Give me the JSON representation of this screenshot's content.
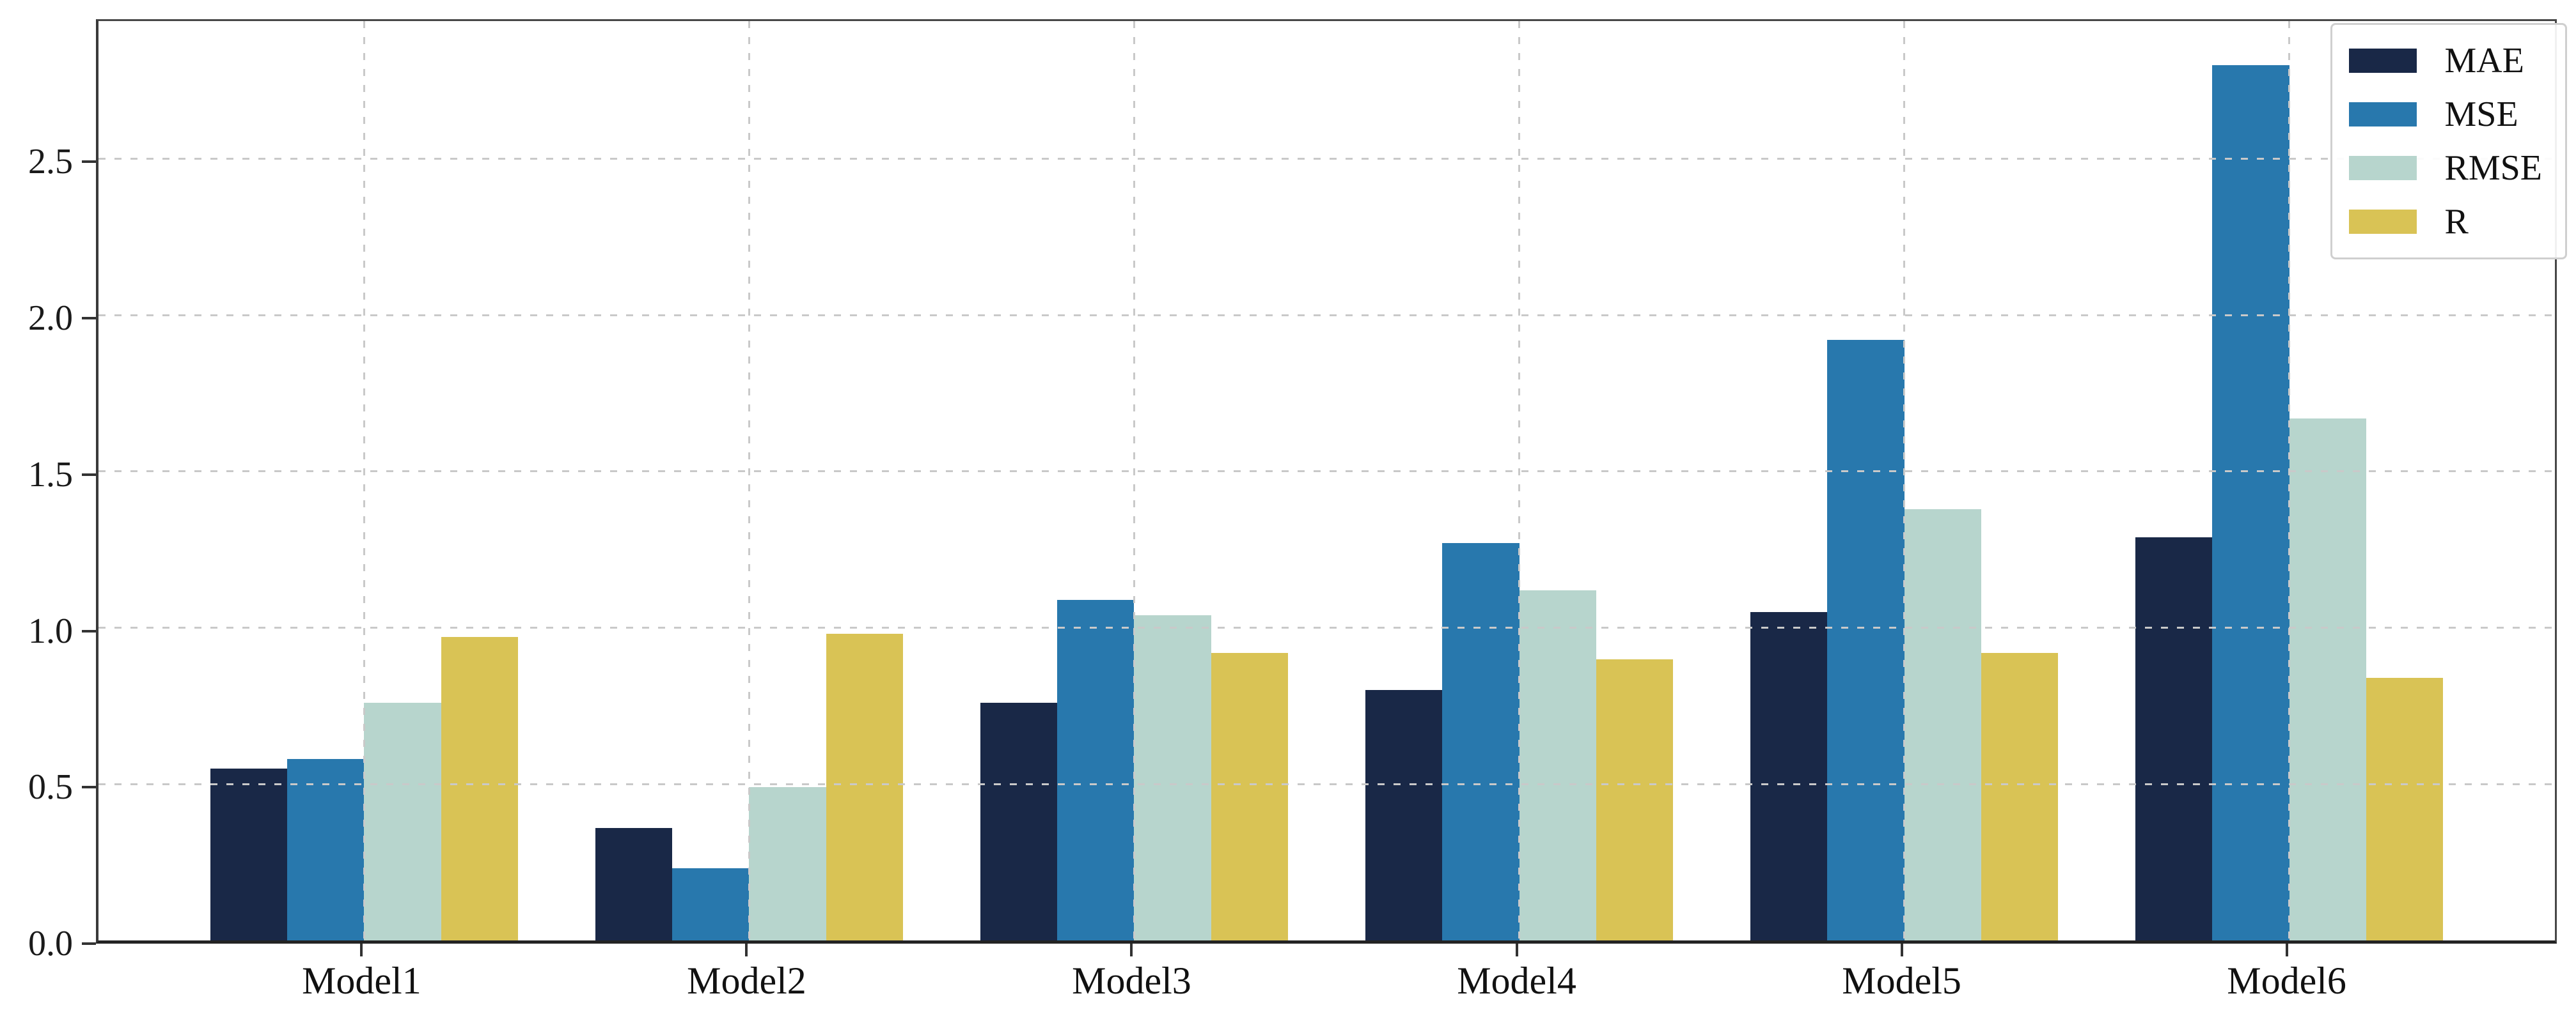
{
  "chart_data": {
    "type": "bar",
    "title": "",
    "xlabel": "",
    "ylabel": "",
    "categories": [
      "Model1",
      "Model2",
      "Model3",
      "Model4",
      "Model5",
      "Model6"
    ],
    "series": [
      {
        "name": "MAE",
        "color": "#192847",
        "values": [
          0.55,
          0.36,
          0.76,
          0.8,
          1.05,
          1.29
        ]
      },
      {
        "name": "MSE",
        "color": "#2878ad",
        "values": [
          0.58,
          0.23,
          1.09,
          1.27,
          1.92,
          2.8
        ]
      },
      {
        "name": "RMSE",
        "color": "#b7d5cd",
        "values": [
          0.76,
          0.49,
          1.04,
          1.12,
          1.38,
          1.67
        ]
      },
      {
        "name": "R",
        "color": "#d9c355",
        "values": [
          0.97,
          0.98,
          0.92,
          0.9,
          0.92,
          0.84
        ]
      }
    ],
    "yticks": [
      0,
      0.5,
      1.0,
      1.5,
      2.0,
      2.5
    ],
    "ytick_labels": [
      "0.0",
      "0.5",
      "1.0",
      "1.5",
      "2.0",
      "2.5"
    ],
    "ylim": [
      0,
      2.94
    ],
    "xlim": [
      -0.69,
      5.69
    ],
    "bar_width_units": 0.2,
    "grid": true,
    "grid_axes": "both",
    "grid_style": "dashed",
    "legend_position": "upper right"
  },
  "style": {
    "background": "#ffffff",
    "grid_color": "#c9c9c9",
    "spine_color": "#474747",
    "bottom_spine_color": "#232323",
    "tick_color": "#333333",
    "tick_label_color": "#1a1a1a",
    "legend_border_color": "#cfcfcf"
  }
}
